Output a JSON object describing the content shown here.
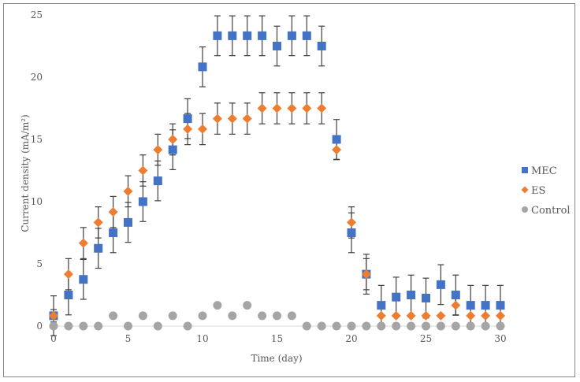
{
  "chart_data": {
    "type": "scatter",
    "title": "",
    "xlabel": "Time (day)",
    "ylabel": "Current density (mA/m²)",
    "xlim": [
      0,
      30
    ],
    "ylim": [
      0,
      25
    ],
    "xticks": [
      "0",
      "5",
      "10",
      "15",
      "20",
      "25",
      "30"
    ],
    "yticks": [
      "0",
      "5",
      "10",
      "15",
      "20",
      "25"
    ],
    "legend_position": "right",
    "grid": false,
    "x": [
      0,
      1,
      2,
      3,
      4,
      5,
      6,
      7,
      8,
      9,
      10,
      11,
      12,
      13,
      14,
      15,
      16,
      17,
      18,
      19,
      20,
      21,
      22,
      23,
      24,
      25,
      26,
      27,
      28,
      29,
      30
    ],
    "series": [
      {
        "name": "MEC",
        "marker": "square",
        "color": "#4472C4",
        "values": [
          0.83,
          2.5,
          3.75,
          6.25,
          7.5,
          8.33,
          10,
          11.67,
          14.17,
          16.67,
          20.83,
          23.33,
          23.33,
          23.33,
          23.33,
          22.5,
          23.33,
          23.33,
          22.5,
          15,
          7.5,
          4.17,
          1.67,
          2.33,
          2.5,
          2.25,
          3.33,
          2.5,
          1.67,
          1.67,
          1.67
        ],
        "errors": [
          1.6,
          1.6,
          1.6,
          1.6,
          1.6,
          1.6,
          1.6,
          1.6,
          1.6,
          1.6,
          1.6,
          1.6,
          1.6,
          1.6,
          1.6,
          1.6,
          1.6,
          1.6,
          1.6,
          1.6,
          1.6,
          1.6,
          1.6,
          1.6,
          1.6,
          1.6,
          1.6,
          1.6,
          1.6,
          1.6,
          1.6
        ]
      },
      {
        "name": "ES",
        "marker": "diamond",
        "color": "#ED7D31",
        "values": [
          0.83,
          4.17,
          6.67,
          8.33,
          9.17,
          10.83,
          12.5,
          14.17,
          15,
          15.83,
          15.83,
          16.67,
          16.67,
          16.67,
          17.5,
          17.5,
          17.5,
          17.5,
          17.5,
          14.17,
          8.33,
          4.17,
          0.83,
          0.83,
          0.83,
          0.83,
          0.83,
          1.67,
          0.83,
          0.83,
          0.83
        ],
        "errors": [
          0.5,
          1.25,
          1.25,
          1.25,
          1.25,
          1.25,
          1.25,
          1.25,
          1.25,
          1.25,
          1.25,
          1.25,
          1.25,
          1.25,
          1.25,
          1.25,
          1.25,
          1.25,
          1.25,
          0.8,
          1.25,
          1.25,
          0,
          0,
          0,
          0,
          0,
          0.8,
          0,
          0,
          0
        ]
      },
      {
        "name": "Control",
        "marker": "circle",
        "color": "#A5A5A5",
        "values": [
          0,
          0,
          0,
          0,
          0.83,
          0,
          0.83,
          0,
          0.83,
          0,
          0.83,
          1.67,
          0.83,
          1.67,
          0.83,
          0.83,
          0.83,
          0,
          0,
          0,
          0,
          0,
          0,
          0,
          0,
          0,
          0,
          0,
          0,
          0,
          0
        ]
      }
    ]
  }
}
